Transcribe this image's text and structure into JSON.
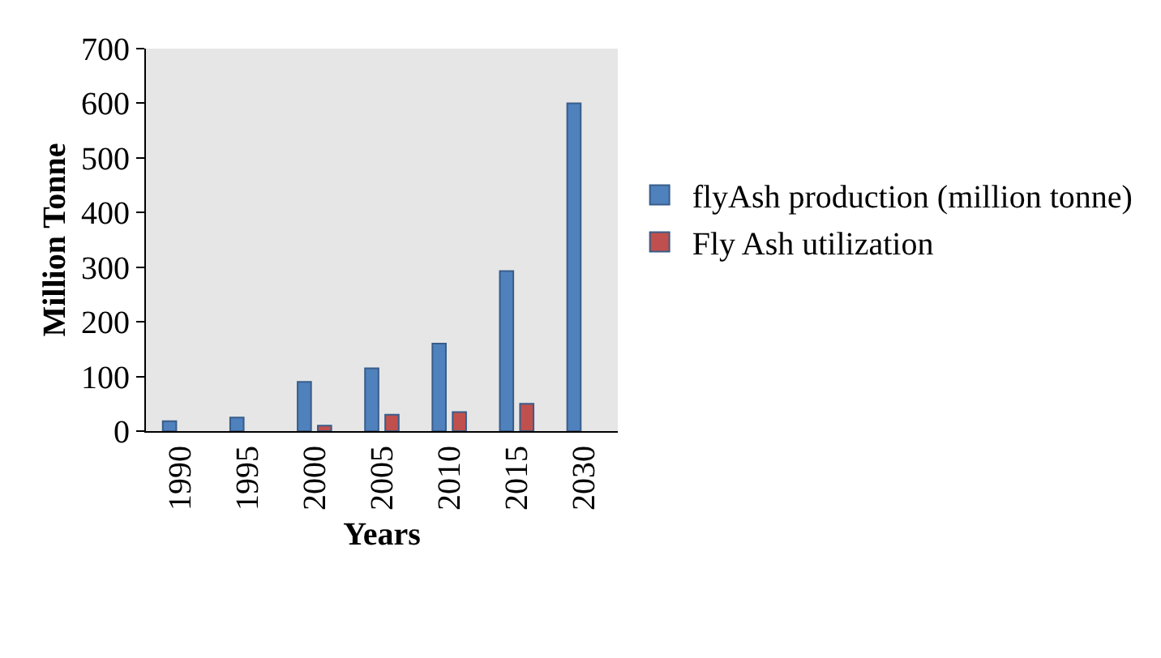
{
  "chart_data": {
    "type": "bar",
    "xlabel": "Years",
    "ylabel": "Million Tonne",
    "categories": [
      "1990",
      "1995",
      "2000",
      "2005",
      "2010",
      "2015",
      "2030"
    ],
    "series": [
      {
        "name": "flyAsh production (million tonne)",
        "color": "#4f81bd",
        "values": [
          18,
          25,
          90,
          115,
          160,
          293,
          600
        ]
      },
      {
        "name": "Fly Ash utilization",
        "color": "#c0504d",
        "values": [
          null,
          null,
          10,
          30,
          35,
          50,
          null
        ]
      }
    ],
    "ylim": [
      0,
      700
    ],
    "yticks": [
      0,
      100,
      200,
      300,
      400,
      500,
      600,
      700
    ],
    "grid": false,
    "legend": "right"
  }
}
